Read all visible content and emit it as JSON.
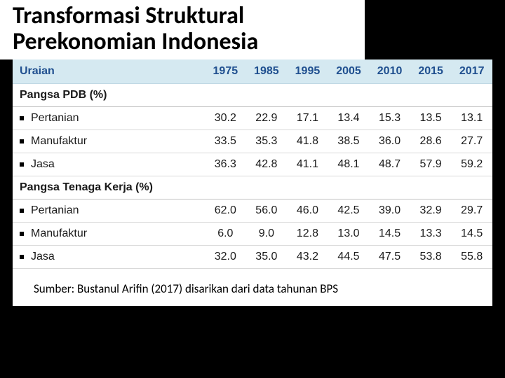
{
  "title": {
    "line1": "Transformasi Struktural",
    "line2": "Perekonomian Indonesia"
  },
  "table": {
    "headers": [
      "Uraian",
      "1975",
      "1985",
      "1995",
      "2005",
      "2010",
      "2015",
      "2017"
    ],
    "sections": [
      {
        "label": "Pangsa PDB (%)",
        "rows": [
          {
            "label": "Pertanian",
            "values": [
              "30.2",
              "22.9",
              "17.1",
              "13.4",
              "15.3",
              "13.5",
              "13.1"
            ]
          },
          {
            "label": "Manufaktur",
            "values": [
              "33.5",
              "35.3",
              "41.8",
              "38.5",
              "36.0",
              "28.6",
              "27.7"
            ]
          },
          {
            "label": "Jasa",
            "values": [
              "36.3",
              "42.8",
              "41.1",
              "48.1",
              "48.7",
              "57.9",
              "59.2"
            ]
          }
        ]
      },
      {
        "label": "Pangsa Tenaga Kerja (%)",
        "rows": [
          {
            "label": "Pertanian",
            "values": [
              "62.0",
              "56.0",
              "46.0",
              "42.5",
              "39.0",
              "32.9",
              "29.7"
            ]
          },
          {
            "label": "Manufaktur",
            "values": [
              "6.0",
              "9.0",
              "12.8",
              "13.0",
              "14.5",
              "13.3",
              "14.5"
            ]
          },
          {
            "label": "Jasa",
            "values": [
              "32.0",
              "35.0",
              "43.2",
              "44.5",
              "47.5",
              "53.8",
              "55.8"
            ]
          }
        ]
      }
    ]
  },
  "source": "Sumber: Bustanul Arifin (2017) disarikan dari data tahunan BPS",
  "colors": {
    "page_bg": "#000000",
    "panel_bg": "#ffffff",
    "header_bg": "#d5e9f1",
    "header_text": "#1f4f8f",
    "row_border": "#d9d9d9"
  }
}
